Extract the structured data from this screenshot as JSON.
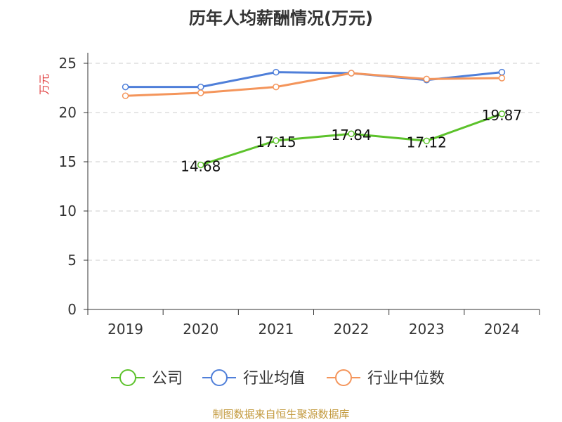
{
  "chart_data": {
    "type": "line",
    "title": "历年人均薪酬情况(万元)",
    "ylabel": "万元",
    "ylim": [
      0,
      25
    ],
    "yticks": [
      0,
      5,
      10,
      15,
      20,
      25
    ],
    "categories": [
      "2019",
      "2020",
      "2021",
      "2022",
      "2023",
      "2024"
    ],
    "grid": true,
    "legend_position": "bottom",
    "series": [
      {
        "name": "公司",
        "color": "#5cc22b",
        "values": [
          null,
          14.68,
          17.15,
          17.84,
          17.12,
          19.87
        ],
        "data_labels": [
          "",
          "14.68",
          "17.15",
          "17.84",
          "17.12",
          "19.87"
        ]
      },
      {
        "name": "行业均值",
        "color": "#4f7fd9",
        "values": [
          22.6,
          22.6,
          24.1,
          24.0,
          23.3,
          24.1
        ]
      },
      {
        "name": "行业中位数",
        "color": "#f4955b",
        "values": [
          21.7,
          22.0,
          22.6,
          24.0,
          23.4,
          23.5
        ]
      }
    ],
    "ylabel_color": "#e03c3c"
  },
  "source": {
    "text": "制图数据来自恒生聚源数据库",
    "color": "#c39a3e"
  }
}
